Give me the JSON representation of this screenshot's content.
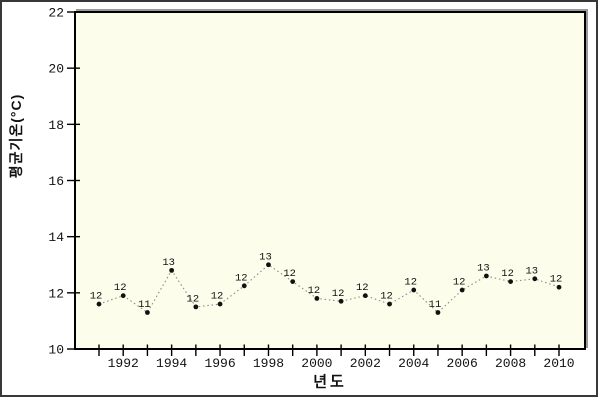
{
  "chart_data": {
    "type": "line",
    "title": "",
    "xlabel": "년도",
    "ylabel": "평균기온(°C)",
    "x": [
      1991,
      1992,
      1993,
      1994,
      1995,
      1996,
      1997,
      1998,
      1999,
      2000,
      2001,
      2002,
      2003,
      2004,
      2005,
      2006,
      2007,
      2008,
      2009,
      2010
    ],
    "values": [
      11.6,
      11.9,
      11.3,
      12.8,
      11.5,
      11.6,
      12.25,
      13.0,
      12.4,
      11.8,
      11.7,
      11.9,
      11.6,
      12.1,
      11.3,
      12.1,
      12.6,
      12.4,
      12.5,
      12.2
    ],
    "point_labels": [
      "12",
      "12",
      "11",
      "13",
      "12",
      "12",
      "12",
      "13",
      "12",
      "12",
      "12",
      "12",
      "12",
      "12",
      "11",
      "12",
      "13",
      "12",
      "13",
      "12"
    ],
    "ylim": [
      10,
      22
    ],
    "ytick_step": 2,
    "xtick_labeled_years": [
      1992,
      1994,
      1996,
      1998,
      2000,
      2002,
      2004,
      2006,
      2008,
      2010
    ],
    "grid": false,
    "legend": "none",
    "line_style": "dotted",
    "marker": "filled-circle",
    "colors": {
      "plot_bg": "#fdfdeb",
      "frame": "#000000",
      "frame_shadow": "#9a9a9a",
      "line": "#8a8a8a",
      "dot": "#111111",
      "text": "#111111",
      "outer_border": "#383838",
      "page_bg": "#ffffff"
    }
  }
}
